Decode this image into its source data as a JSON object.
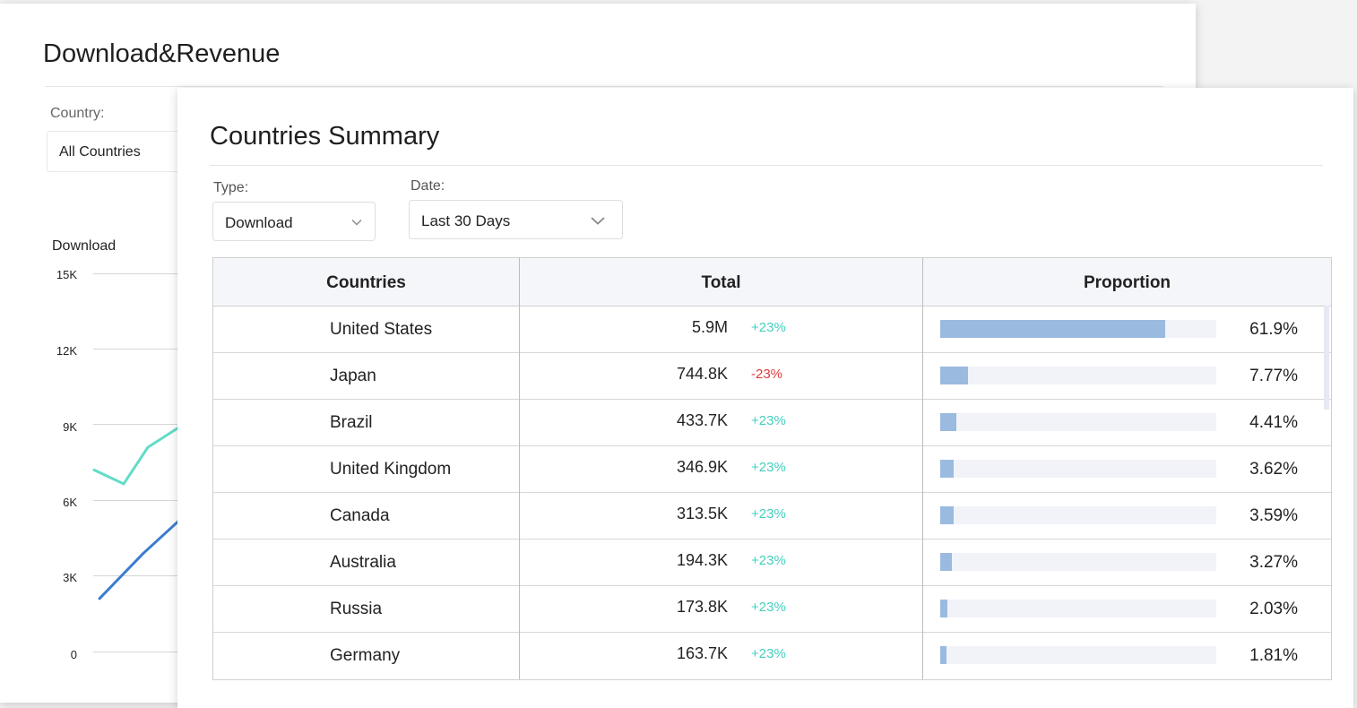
{
  "back_panel": {
    "title": "Download&Revenue",
    "country_label": "Country:",
    "country_value": "All Countries",
    "chart_label": "Download"
  },
  "chart_data": {
    "type": "line",
    "title": "Download",
    "yticks": [
      "15K",
      "12K",
      "9K",
      "6K",
      "3K",
      "0"
    ],
    "ylim": [
      0,
      15000
    ],
    "series": [
      {
        "name": "teal-series",
        "color": "#62dcc7",
        "values": [
          7200,
          6650,
          8100,
          8900
        ]
      },
      {
        "name": "blue-series",
        "color": "#3b7ccf",
        "values": [
          2100,
          3900,
          5200
        ]
      }
    ]
  },
  "summary": {
    "title": "Countries Summary",
    "type_label": "Type:",
    "type_value": "Download",
    "date_label": "Date:",
    "date_value": "Last 30 Days",
    "columns": {
      "countries": "Countries",
      "total": "Total",
      "proportion": "Proportion"
    },
    "rows": [
      {
        "country": "United States",
        "total": "5.9M",
        "change": "+23%",
        "trend": "up",
        "proportion": "61.9%",
        "share": 61.9
      },
      {
        "country": "Japan",
        "total": "744.8K",
        "change": "-23%",
        "trend": "down",
        "proportion": "7.77%",
        "share": 7.77
      },
      {
        "country": "Brazil",
        "total": "433.7K",
        "change": "+23%",
        "trend": "up",
        "proportion": "4.41%",
        "share": 4.41
      },
      {
        "country": "United Kingdom",
        "total": "346.9K",
        "change": "+23%",
        "trend": "up",
        "proportion": "3.62%",
        "share": 3.62
      },
      {
        "country": "Canada",
        "total": "313.5K",
        "change": "+23%",
        "trend": "up",
        "proportion": "3.59%",
        "share": 3.59
      },
      {
        "country": "Australia",
        "total": "194.3K",
        "change": "+23%",
        "trend": "up",
        "proportion": "3.27%",
        "share": 3.27
      },
      {
        "country": "Russia",
        "total": "173.8K",
        "change": "+23%",
        "trend": "up",
        "proportion": "2.03%",
        "share": 2.03
      },
      {
        "country": "Germany",
        "total": "163.7K",
        "change": "+23%",
        "trend": "up",
        "proportion": "1.81%",
        "share": 1.81
      }
    ]
  }
}
